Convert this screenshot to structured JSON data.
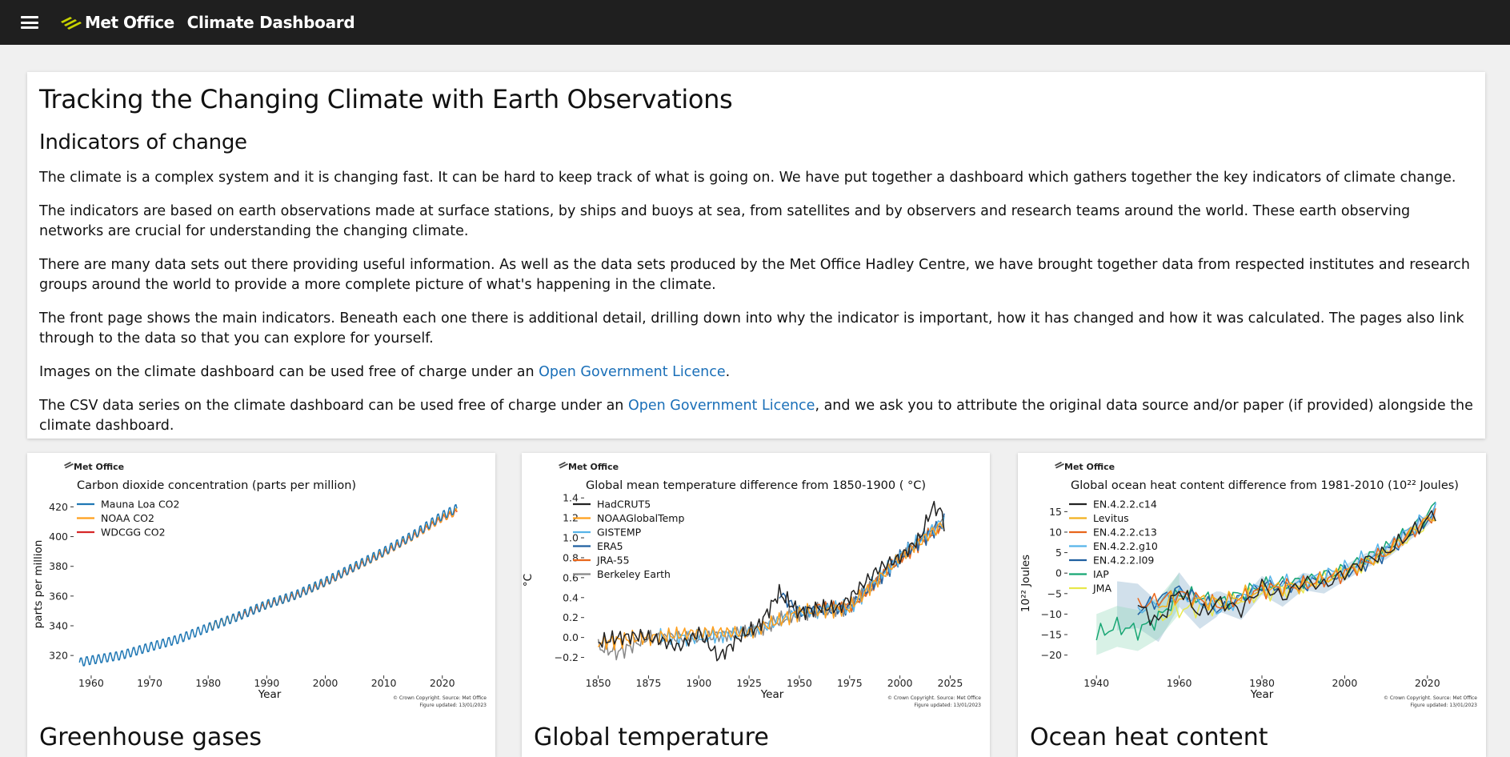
{
  "header": {
    "brand": "Met Office",
    "app_title": "Climate Dashboard"
  },
  "intro": {
    "title": "Tracking the Changing Climate with Earth Observations",
    "subtitle": "Indicators of change",
    "p1": "The climate is a complex system and it is changing fast. It can be hard to keep track of what is going on. We have put together a dashboard which gathers together the key indicators of climate change.",
    "p2": "The indicators are based on earth observations made at surface stations, by ships and buoys at sea, from satellites and by observers and research teams around the world. These earth observing networks are crucial for understanding the changing climate.",
    "p3": "There are many data sets out there providing useful information. As well as the data sets produced by the Met Office Hadley Centre, we have brought together data from respected institutes and research groups around the world to provide a more complete picture of what's happening in the climate.",
    "p4": "The front page shows the main indicators. Beneath each one there is additional detail, drilling down into why the indicator is important, how it has changed and how it was calculated. The pages also link through to the data so that you can explore for yourself.",
    "p5_before": "Images on the climate dashboard can be used free of charge under an ",
    "p5_link": "Open Government Licence",
    "p5_after": ".",
    "p6_before": "The CSV data series on the climate dashboard can be used free of charge under an ",
    "p6_link": "Open Government Licence",
    "p6_after": ", and we ask you to attribute the original data source and/or paper (if provided) alongside the climate dashboard."
  },
  "cards": [
    {
      "heading": "Greenhouse gases",
      "logo": "Met Office",
      "copyright": "© Crown Copyright. Source: Met Office",
      "updated": "Figure updated: 13/01/2023"
    },
    {
      "heading": "Global temperature",
      "logo": "Met Office",
      "copyright": "© Crown Copyright. Source: Met Office",
      "updated": "Figure updated: 13/01/2023"
    },
    {
      "heading": "Ocean heat content",
      "logo": "Met Office",
      "copyright": "© Crown Copyright. Source: Met Office",
      "updated": "Figure updated: 13/01/2023"
    }
  ],
  "colors": {
    "brand_green": "#c8d400",
    "link": "#1a6fb8",
    "topbar": "#1f1f1f"
  },
  "chart_data": [
    {
      "type": "line",
      "title": "Carbon dioxide concentration (parts per million)",
      "xlabel": "Year",
      "ylabel": "parts per million",
      "xlim": [
        1957,
        2024
      ],
      "ylim": [
        312,
        424
      ],
      "xticks": [
        1960,
        1970,
        1980,
        1990,
        2000,
        2010,
        2020
      ],
      "yticks": [
        320,
        340,
        360,
        380,
        400,
        420
      ],
      "legend": "top-left",
      "series": [
        {
          "name": "Mauna Loa CO2",
          "color": "#1f77b4",
          "x": [
            1958,
            1960,
            1965,
            1970,
            1975,
            1980,
            1985,
            1990,
            1995,
            2000,
            2005,
            2010,
            2015,
            2020,
            2022.5
          ],
          "values": [
            315.3,
            316.9,
            320.0,
            325.7,
            331.1,
            338.8,
            346.1,
            354.4,
            360.8,
            369.7,
            379.8,
            389.9,
            401.0,
            414.2,
            419.0
          ],
          "seasonal": 3.2
        },
        {
          "name": "NOAA CO2",
          "color": "#ff9f1c",
          "x": [
            1980,
            1985,
            1990,
            1995,
            2000,
            2005,
            2010,
            2015,
            2020,
            2022.5
          ],
          "values": [
            338.9,
            345.8,
            353.8,
            360.2,
            368.9,
            379.0,
            388.9,
            400.0,
            412.5,
            417.0
          ],
          "seasonal": 2.5
        },
        {
          "name": "WDCGG CO2",
          "color": "#d62728",
          "x": [
            1985,
            1990,
            1995,
            2000,
            2005,
            2010,
            2015,
            2020,
            2022.5
          ],
          "values": [
            345.5,
            353.5,
            359.9,
            368.5,
            378.6,
            388.5,
            399.6,
            412.0,
            416.5
          ],
          "seasonal": 2.0
        }
      ]
    },
    {
      "type": "line",
      "title": "Global mean temperature difference from 1850-1900 ( °C)",
      "xlabel": "Year",
      "ylabel": "°C",
      "xlim": [
        1843,
        2030
      ],
      "ylim": [
        -0.3,
        1.45
      ],
      "xticks": [
        1850,
        1875,
        1900,
        1925,
        1950,
        1975,
        2000,
        2025
      ],
      "yticks": [
        -0.2,
        0.0,
        0.2,
        0.4,
        0.6,
        0.8,
        1.0,
        1.2,
        1.4
      ],
      "legend": "top-left",
      "series": [
        {
          "name": "HadCRUT5",
          "color": "#222222",
          "x": [
            1850,
            1860,
            1870,
            1880,
            1890,
            1900,
            1910,
            1920,
            1930,
            1940,
            1950,
            1960,
            1970,
            1980,
            1990,
            2000,
            2010,
            2016,
            2020,
            2022
          ],
          "values": [
            -0.05,
            0.0,
            0.02,
            -0.02,
            -0.1,
            0.05,
            -0.2,
            0.0,
            0.12,
            0.45,
            0.25,
            0.3,
            0.3,
            0.5,
            0.7,
            0.8,
            1.0,
            1.3,
            1.28,
            1.15
          ]
        },
        {
          "name": "NOAAGlobalTemp",
          "color": "#ff9f1c",
          "x": [
            1850,
            1875,
            1900,
            1925,
            1950,
            1975,
            2000,
            2022
          ],
          "values": [
            -0.05,
            0.0,
            0.05,
            0.05,
            0.25,
            0.3,
            0.8,
            1.15
          ]
        },
        {
          "name": "GISTEMP",
          "color": "#56b4e9",
          "x": [
            1880,
            1900,
            1925,
            1950,
            1975,
            2000,
            2022
          ],
          "values": [
            0.0,
            0.0,
            0.05,
            0.25,
            0.3,
            0.82,
            1.18
          ]
        },
        {
          "name": "ERA5",
          "color": "#1f5fa0",
          "x": [
            1940,
            1950,
            1975,
            2000,
            2022
          ],
          "values": [
            0.45,
            0.25,
            0.3,
            0.8,
            1.16
          ]
        },
        {
          "name": "JRA-55",
          "color": "#e8661b",
          "x": [
            1958,
            1975,
            2000,
            2022
          ],
          "values": [
            0.3,
            0.3,
            0.79,
            1.14
          ]
        },
        {
          "name": "Berkeley Earth",
          "color": "#888888",
          "x": [
            1850,
            1860,
            1875,
            1900,
            1925,
            1950,
            1975,
            2000,
            2022
          ],
          "values": [
            -0.1,
            -0.15,
            0.0,
            0.0,
            0.05,
            0.25,
            0.3,
            0.8,
            1.17
          ]
        }
      ]
    },
    {
      "type": "line",
      "title": "Global ocean heat content difference from 1981-2010 (10²² Joules)",
      "xlabel": "Year",
      "ylabel": "10²² Joules",
      "xlim": [
        1933,
        2027
      ],
      "ylim": [
        -23,
        18
      ],
      "xticks": [
        1940,
        1960,
        1980,
        2000,
        2020
      ],
      "yticks": [
        -20,
        -15,
        -10,
        -5,
        0,
        5,
        10,
        15
      ],
      "legend": "top-left",
      "series": [
        {
          "name": "EN.4.2.2.c14",
          "color": "#222222",
          "x": [
            1950,
            1955,
            1960,
            1965,
            1970,
            1975,
            1980,
            1985,
            1990,
            1995,
            2000,
            2005,
            2010,
            2015,
            2020,
            2022
          ],
          "values": [
            -8,
            -12,
            -4,
            -10,
            -7,
            -9,
            -3,
            -6,
            -2,
            -3,
            0,
            3,
            5,
            9,
            13,
            15
          ]
        },
        {
          "name": "Levitus",
          "color": "#f2b01e",
          "x": [
            1955,
            1960,
            1970,
            1980,
            1990,
            2000,
            2010,
            2020,
            2022
          ],
          "values": [
            -8,
            -6,
            -7,
            -4,
            -3,
            0,
            5,
            13,
            14
          ]
        },
        {
          "name": "EN.4.2.2.c13",
          "color": "#e8661b",
          "x": [
            1950,
            1960,
            1970,
            1980,
            1990,
            2000,
            2010,
            2020,
            2022
          ],
          "values": [
            -8,
            -5,
            -8,
            -4,
            -3,
            0,
            5,
            13,
            15
          ]
        },
        {
          "name": "EN.4.2.2.g10",
          "color": "#56b4e9",
          "x": [
            1950,
            1960,
            1970,
            1980,
            1990,
            2000,
            2010,
            2020,
            2022
          ],
          "values": [
            -9,
            -5,
            -9,
            -3,
            -2,
            1,
            6,
            14,
            15
          ]
        },
        {
          "name": "EN.4.2.2.l09",
          "color": "#1f5fa0",
          "x": [
            1950,
            1960,
            1970,
            1980,
            1990,
            2000,
            2010,
            2020,
            2022
          ],
          "values": [
            -9,
            -4,
            -9,
            -3,
            -3,
            0,
            5,
            13,
            15
          ]
        },
        {
          "name": "IAP",
          "color": "#17a673",
          "x": [
            1940,
            1945,
            1950,
            1955,
            1960,
            1970,
            1980,
            1990,
            2000,
            2010,
            2020,
            2022
          ],
          "values": [
            -15,
            -13,
            -14,
            -11,
            -5,
            -7,
            -3,
            -2,
            1,
            6,
            14,
            17
          ]
        },
        {
          "name": "JMA",
          "color": "#e8e84a",
          "x": [
            1955,
            1960,
            1970,
            1980,
            1990,
            2000,
            2010,
            2020,
            2022
          ],
          "values": [
            -11,
            -9,
            -8,
            -5,
            -3,
            0,
            5,
            12,
            14
          ]
        }
      ]
    }
  ]
}
